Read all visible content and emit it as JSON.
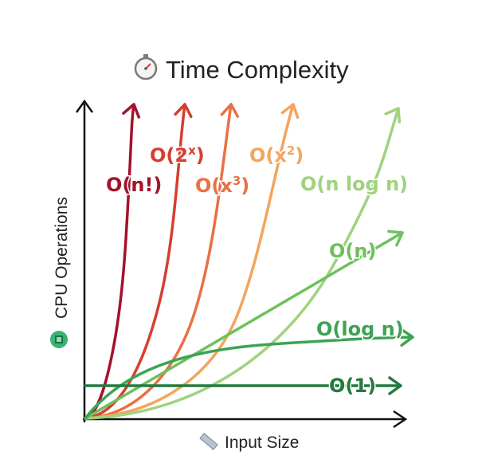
{
  "chart_data": {
    "type": "line",
    "title": "Time Complexity",
    "title_icon": "stopwatch-icon",
    "xlabel": "Input Size",
    "xlabel_icon": "ruler-icon",
    "ylabel": "CPU Operations",
    "ylabel_icon": "cpu-chip-icon",
    "grid": false,
    "legend": "none",
    "series": [
      {
        "name": "O(n!)",
        "color": "#a3122b",
        "label": "O(n!)"
      },
      {
        "name": "O(2^x)",
        "color": "#d63e2f",
        "label": "O(2",
        "label_sup": "x",
        "label_end": ")"
      },
      {
        "name": "O(x^3)",
        "color": "#ea7046",
        "label": "O(x",
        "label_sup": "3",
        "label_end": ")"
      },
      {
        "name": "O(x^2)",
        "color": "#f4a45c",
        "label": "O(x",
        "label_sup": "2",
        "label_end": ")"
      },
      {
        "name": "O(n log n)",
        "color": "#9fd37d",
        "label": "O(n log n)"
      },
      {
        "name": "O(n)",
        "color": "#6cc15c",
        "label": "O(n)"
      },
      {
        "name": "O(log n)",
        "color": "#3ea354",
        "label": "O(log n)"
      },
      {
        "name": "O(1)",
        "color": "#237a3e",
        "label": "O(1)"
      }
    ]
  }
}
